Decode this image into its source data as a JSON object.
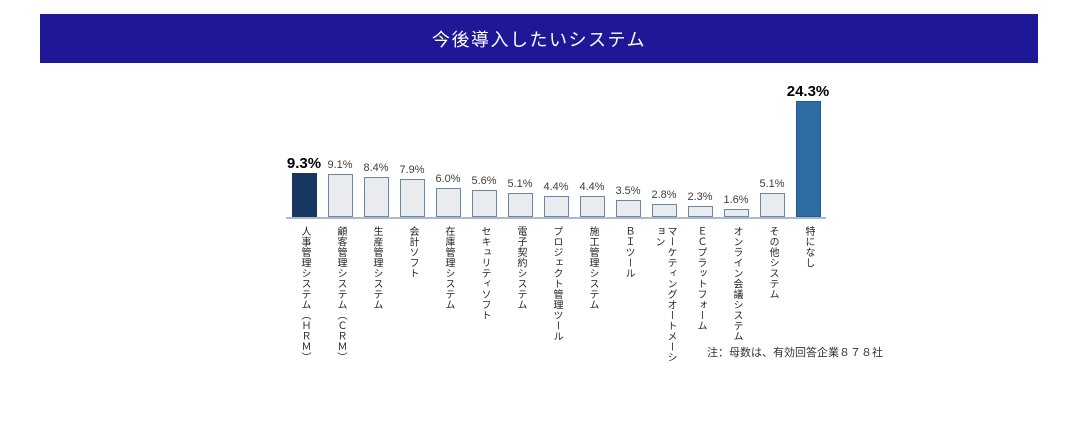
{
  "colors": {
    "banner_bg": "#1e1796",
    "title_text": "#ffffff",
    "bar_first_fill": "#17375e",
    "bar_default_fill": "#e9ebee",
    "bar_default_border": "#6987a8",
    "bar_last_fill": "#2e6da4",
    "bar_last_border": "#235a8c",
    "axis_line": "#a9b9ce",
    "value_label": "#3d3d3d",
    "emphasis_label": "#000000"
  },
  "chart_data": {
    "type": "bar",
    "title": "今後導入したいシステム",
    "categories": [
      "人事管理システム（ＨＲＭ）",
      "顧客管理システム（ＣＲＭ）",
      "生産管理システム",
      "会計ソフト",
      "在庫管理システム",
      "セキュリティソフト",
      "電子契約システム",
      "プロジェクト管理ツール",
      "施工管理システム",
      "ＢＩツール",
      "マーケティングオートメーション",
      "ＥＣプラットフォーム",
      "オンライン会議システム",
      "その他システム",
      "特になし"
    ],
    "values": [
      9.3,
      9.1,
      8.4,
      7.9,
      6.0,
      5.6,
      5.1,
      4.4,
      4.4,
      3.5,
      2.8,
      2.3,
      1.6,
      5.1,
      24.3
    ],
    "value_labels": [
      "9.3%",
      "9.1%",
      "8.4%",
      "7.9%",
      "6.0%",
      "5.6%",
      "5.1%",
      "4.4%",
      "4.4%",
      "3.5%",
      "2.8%",
      "2.3%",
      "1.6%",
      "5.1%",
      "24.3%"
    ],
    "bar_styles": [
      "navy",
      "gray",
      "gray",
      "gray",
      "gray",
      "gray",
      "gray",
      "gray",
      "gray",
      "gray",
      "gray",
      "gray",
      "gray",
      "gray",
      "blue"
    ],
    "emphasized_labels": [
      "9.3%",
      "24.3%"
    ],
    "note": "注：母数は、有効回答企業８７８社",
    "xlabel": "",
    "ylabel": "",
    "ylim": [
      0,
      25
    ],
    "grid": false,
    "legend": "none"
  }
}
